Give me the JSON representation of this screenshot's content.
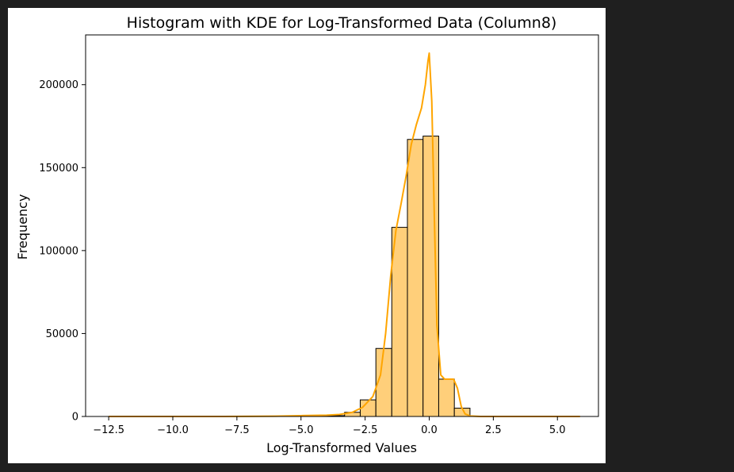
{
  "chart_data": {
    "type": "bar",
    "title": "Histogram with KDE for Log-Transformed Data (Column8)",
    "xlabel": "Log-Transformed Values",
    "ylabel": "Frequency",
    "xlim": [
      -13.4,
      6.6
    ],
    "ylim": [
      0,
      230000
    ],
    "grid": false,
    "x_ticks": [
      {
        "value": -12.5,
        "label": "−12.5"
      },
      {
        "value": -10.0,
        "label": "−10.0"
      },
      {
        "value": -7.5,
        "label": "−7.5"
      },
      {
        "value": -5.0,
        "label": "−5.0"
      },
      {
        "value": -2.5,
        "label": "−2.5"
      },
      {
        "value": 0.0,
        "label": "0.0"
      },
      {
        "value": 2.5,
        "label": "2.5"
      },
      {
        "value": 5.0,
        "label": "5.0"
      }
    ],
    "y_ticks": [
      {
        "value": 0,
        "label": "0"
      },
      {
        "value": 50000,
        "label": "50000"
      },
      {
        "value": 100000,
        "label": "100000"
      },
      {
        "value": 150000,
        "label": "150000"
      },
      {
        "value": 200000,
        "label": "200000"
      }
    ],
    "bars": [
      {
        "x0": -12.48,
        "x1": -11.87,
        "value": 0
      },
      {
        "x0": -11.87,
        "x1": -11.26,
        "value": 0
      },
      {
        "x0": -11.26,
        "x1": -10.64,
        "value": 0
      },
      {
        "x0": -10.64,
        "x1": -10.03,
        "value": 0
      },
      {
        "x0": -10.03,
        "x1": -9.42,
        "value": 0
      },
      {
        "x0": -9.42,
        "x1": -8.81,
        "value": 0
      },
      {
        "x0": -8.81,
        "x1": -8.2,
        "value": 0
      },
      {
        "x0": -8.2,
        "x1": -7.58,
        "value": 0
      },
      {
        "x0": -7.58,
        "x1": -6.97,
        "value": 0
      },
      {
        "x0": -6.97,
        "x1": -6.36,
        "value": 0
      },
      {
        "x0": -6.36,
        "x1": -5.75,
        "value": 0
      },
      {
        "x0": -5.75,
        "x1": -5.14,
        "value": 300
      },
      {
        "x0": -5.14,
        "x1": -4.52,
        "value": 300
      },
      {
        "x0": -4.52,
        "x1": -3.91,
        "value": 300
      },
      {
        "x0": -3.91,
        "x1": -3.3,
        "value": 500
      },
      {
        "x0": -3.3,
        "x1": -2.69,
        "value": 2500
      },
      {
        "x0": -2.69,
        "x1": -2.08,
        "value": 10000
      },
      {
        "x0": -2.08,
        "x1": -1.46,
        "value": 41000
      },
      {
        "x0": -1.46,
        "x1": -0.85,
        "value": 114000
      },
      {
        "x0": -0.85,
        "x1": -0.24,
        "value": 167000
      },
      {
        "x0": -0.24,
        "x1": 0.37,
        "value": 169000
      },
      {
        "x0": 0.37,
        "x1": 0.98,
        "value": 22500
      },
      {
        "x0": 0.98,
        "x1": 1.59,
        "value": 5000
      },
      {
        "x0": 1.59,
        "x1": 2.2,
        "value": 0
      },
      {
        "x0": 2.2,
        "x1": 2.82,
        "value": 0
      },
      {
        "x0": 2.82,
        "x1": 3.43,
        "value": 0
      },
      {
        "x0": 3.43,
        "x1": 4.04,
        "value": 0
      },
      {
        "x0": 4.04,
        "x1": 4.65,
        "value": 0
      },
      {
        "x0": 4.65,
        "x1": 5.26,
        "value": 0
      },
      {
        "x0": 5.26,
        "x1": 5.88,
        "value": 0
      }
    ],
    "kde": {
      "x": [
        -12.5,
        -10.0,
        -8.0,
        -6.0,
        -5.0,
        -4.0,
        -3.5,
        -3.0,
        -2.6,
        -2.2,
        -1.9,
        -1.7,
        -1.5,
        -1.3,
        -1.1,
        -0.9,
        -0.7,
        -0.5,
        -0.3,
        -0.15,
        -0.05,
        0.0,
        0.1,
        0.2,
        0.3,
        0.45,
        0.6,
        0.8,
        0.95,
        1.1,
        1.25,
        1.4,
        1.6,
        2.0,
        3.0,
        4.0,
        5.88
      ],
      "y": [
        0,
        0,
        0,
        200,
        500,
        800,
        1200,
        2500,
        5500,
        12000,
        25000,
        50000,
        85000,
        112000,
        128000,
        145000,
        164000,
        176000,
        186000,
        200000,
        214000,
        219000,
        190000,
        120000,
        55000,
        25000,
        22500,
        22500,
        22500,
        17000,
        6000,
        1500,
        300,
        0,
        0,
        0,
        0
      ],
      "color": "#FFA500"
    },
    "bar_fill": "#FFCF7A",
    "bar_edge": "#000000",
    "kde_color": "#FFA500"
  }
}
